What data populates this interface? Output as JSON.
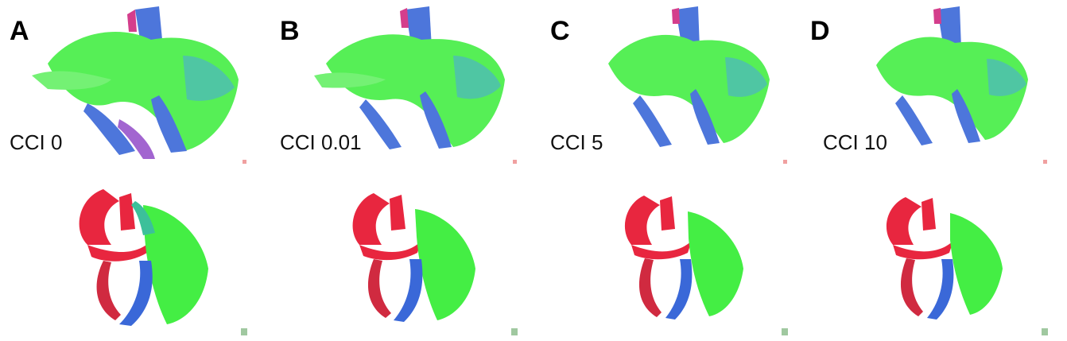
{
  "panels": [
    {
      "letter": "A",
      "cci_label": "CCI 0"
    },
    {
      "letter": "B",
      "cci_label": "CCI 0.01"
    },
    {
      "letter": "C",
      "cci_label": "CCI 5"
    },
    {
      "letter": "D",
      "cci_label": "CCI 10"
    }
  ],
  "colors": {
    "green_fibers": "#33ee33",
    "teal_fibers": "#3cc09a",
    "blue_fibers": "#3366dd",
    "red_fibers": "#e8263f",
    "magenta_fibers": "#d02a80",
    "corner_mark_top": "#f0a0a0",
    "corner_mark_bottom": "#a0c8a0"
  }
}
